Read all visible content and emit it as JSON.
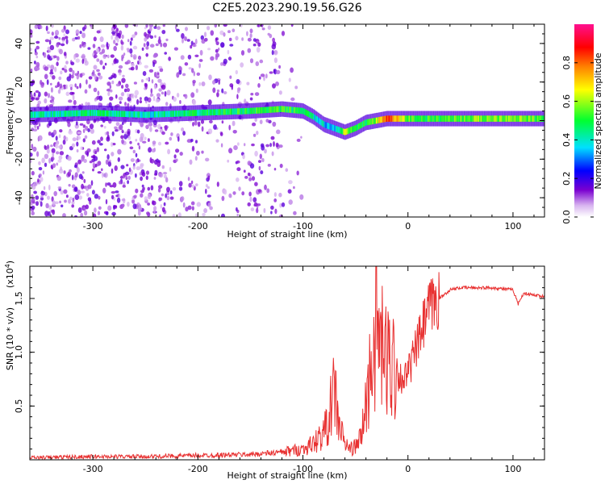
{
  "title": "C2E5.2023.290.19.56.G26",
  "colors": {
    "snr_line": "#e83030",
    "axis": "#000000"
  },
  "chart_data": [
    {
      "type": "heatmap",
      "title": "C2E5.2023.290.19.56.G26",
      "xlabel": "Height of straight line (km)",
      "ylabel": "Frequency (Hz)",
      "xlim": [
        -360,
        130
      ],
      "ylim": [
        -50,
        50
      ],
      "x_ticks": [
        -300,
        -200,
        -100,
        0,
        100
      ],
      "y_ticks": [
        -40,
        -20,
        0,
        20,
        40
      ],
      "colorbar": {
        "label": "Normalized spectral amplitude",
        "ticks": [
          0.0,
          0.2,
          0.4,
          0.6,
          0.8
        ],
        "range": [
          0,
          1
        ],
        "colormap": "rainbow (white-purple-blue-cyan-green-yellow-red-magenta)"
      },
      "ridge": {
        "x": [
          -360,
          -300,
          -250,
          -200,
          -150,
          -120,
          -100,
          -90,
          -80,
          -70,
          -60,
          -50,
          -40,
          -30,
          -20,
          -10,
          0,
          20,
          50,
          100,
          130
        ],
        "freq_hz": [
          3,
          4,
          3,
          4,
          5,
          6,
          5,
          2,
          -2,
          -4,
          -6,
          -4,
          -1,
          0,
          1,
          1,
          1,
          1,
          1,
          1,
          1
        ],
        "amplitude": [
          0.4,
          0.45,
          0.4,
          0.45,
          0.5,
          0.5,
          0.5,
          0.4,
          0.35,
          0.35,
          0.6,
          0.45,
          0.5,
          0.6,
          0.85,
          0.7,
          0.55,
          0.5,
          0.55,
          0.6,
          0.5
        ]
      }
    },
    {
      "type": "line",
      "xlabel": "Height of straight line (km)",
      "ylabel": "SNR (10 * v/v)",
      "y_multiplier": "(x10",
      "y_multiplier_exp": "4",
      "y_multiplier_close": ")",
      "xlim": [
        -360,
        130
      ],
      "ylim": [
        0,
        1.8
      ],
      "x_ticks": [
        -300,
        -200,
        -100,
        0,
        100
      ],
      "y_ticks": [
        0.5,
        1.0,
        1.5
      ],
      "series": [
        {
          "x": [
            -360,
            -300,
            -250,
            -200,
            -150,
            -120,
            -100,
            -90,
            -80,
            -75,
            -70,
            -65,
            -60,
            -55,
            -50,
            -45,
            -40,
            -35,
            -30,
            -25,
            -20,
            -15,
            -10,
            -5,
            0,
            10,
            20,
            30,
            40,
            50,
            60,
            80,
            100,
            105,
            110,
            120,
            130
          ],
          "y": [
            0.02,
            0.03,
            0.03,
            0.04,
            0.05,
            0.07,
            0.1,
            0.15,
            0.25,
            0.4,
            0.65,
            0.3,
            0.15,
            0.1,
            0.12,
            0.2,
            0.5,
            0.9,
            1.3,
            1.0,
            0.9,
            0.95,
            0.8,
            0.75,
            0.8,
            1.1,
            1.4,
            1.5,
            1.58,
            1.6,
            1.6,
            1.6,
            1.58,
            1.45,
            1.55,
            1.53,
            1.52
          ]
        }
      ]
    }
  ]
}
